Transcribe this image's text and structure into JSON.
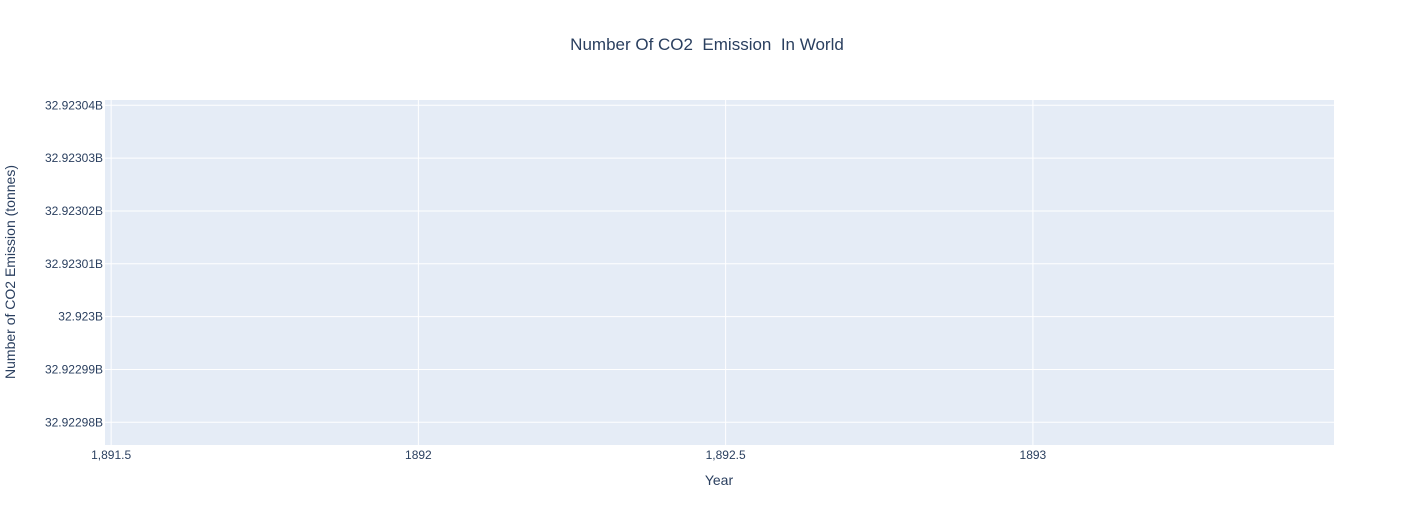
{
  "chart_data": {
    "type": "line",
    "title": "Number Of CO2  Emission  In World",
    "xlabel": "Year",
    "ylabel": "Number of CO2 Emission (tonnes)",
    "xlim": [
      1891.49,
      1893.49
    ],
    "ylim": [
      32922975700,
      32923041000
    ],
    "x_ticks": [
      {
        "value": 1891.5,
        "label": "1,891.5"
      },
      {
        "value": 1892,
        "label": "1892"
      },
      {
        "value": 1892.5,
        "label": "1,892.5"
      },
      {
        "value": 1893,
        "label": "1893"
      }
    ],
    "y_ticks": [
      {
        "value": 32922980000,
        "label": "32.92298B"
      },
      {
        "value": 32922990000,
        "label": "32.92299B"
      },
      {
        "value": 32923000000,
        "label": "32.923B"
      },
      {
        "value": 32923010000,
        "label": "32.92301B"
      },
      {
        "value": 32923020000,
        "label": "32.92302B"
      },
      {
        "value": 32923030000,
        "label": "32.92303B"
      },
      {
        "value": 32923040000,
        "label": "32.92304B"
      }
    ],
    "grid": true,
    "series": []
  },
  "colors": {
    "plot_background": "#e5ecf6",
    "grid": "#ffffff",
    "text": "#2a3f5f"
  }
}
